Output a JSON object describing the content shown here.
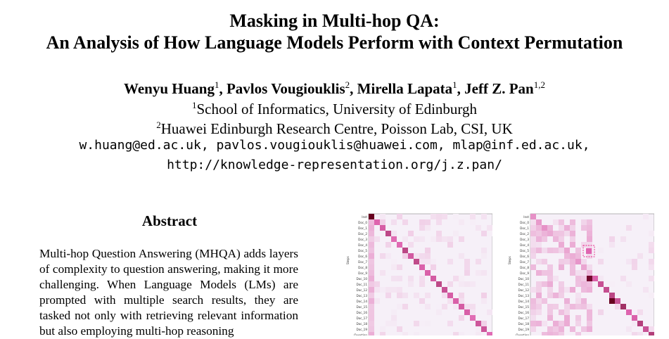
{
  "title_line1": "Masking in Multi-hop QA:",
  "title_line2": "An Analysis of How Language Models Perform with Context Permutation",
  "authors": [
    {
      "name": "Wenyu Huang",
      "sup": "1",
      "sep": ", "
    },
    {
      "name": "Pavlos Vougiouklis",
      "sup": "2",
      "sep": ", "
    },
    {
      "name": "Mirella Lapata",
      "sup": "1",
      "sep": ", "
    },
    {
      "name": "Jeff Z. Pan",
      "sup": "1,2",
      "sep": ""
    }
  ],
  "affiliation1": {
    "sup": "1",
    "text": "School of Informatics, University of Edinburgh"
  },
  "affiliation2": {
    "sup": "2",
    "text": "Huawei Edinburgh Research Centre, Poisson Lab, CSI, UK"
  },
  "emails": "w.huang@ed.ac.uk, pavlos.vougiouklis@huawei.com, mlap@inf.ed.ac.uk,",
  "url": "http://knowledge-representation.org/j.z.pan/",
  "abstract_heading": "Abstract",
  "abstract_text": "Multi-hop Question Answering (MHQA) adds layers of complexity to question answering, making it more challenging. When Language Models (LMs) are prompted with multiple search results, they are tasked not only with retrieving relevant information but also employing multi-hop reasoning",
  "figures": {
    "row_labels": [
      "Inst",
      "Doc_0",
      "Doc_1",
      "Doc_2",
      "Doc_3",
      "Doc_4",
      "Doc_5",
      "Doc_6",
      "Doc_7",
      "Doc_8",
      "Doc_9",
      "Doc_10",
      "Doc_11",
      "Doc_12",
      "Doc_13",
      "Doc_14",
      "Doc_15",
      "Doc_16",
      "Doc_17",
      "Doc_18",
      "Doc_19",
      "Question"
    ],
    "y_axis_label": "Steps",
    "colors": {
      "low": "#f6f0f8",
      "high": "#67001f",
      "mid": "#df65b0",
      "highlight": "#e7298a"
    }
  }
}
